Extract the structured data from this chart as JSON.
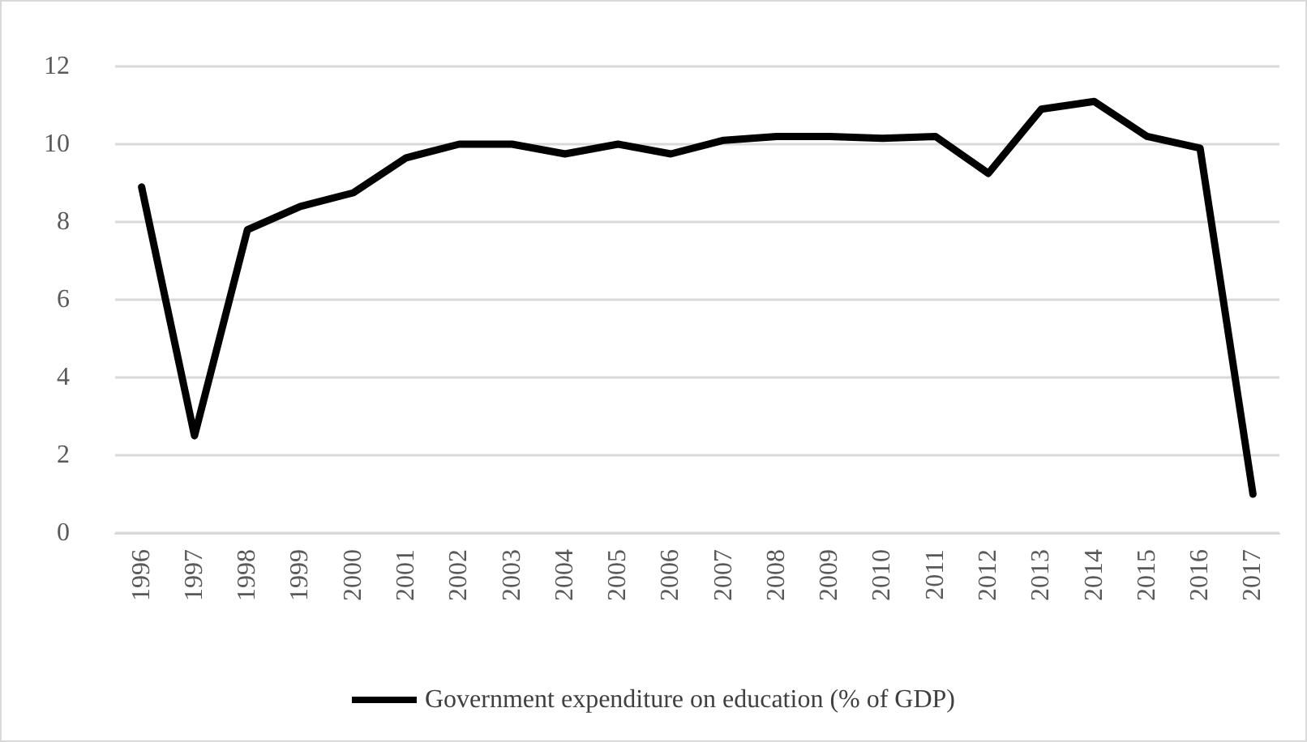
{
  "chart_data": {
    "type": "line",
    "categories": [
      "1996",
      "1997",
      "1998",
      "1999",
      "2000",
      "2001",
      "2002",
      "2003",
      "2004",
      "2005",
      "2006",
      "2007",
      "2008",
      "2009",
      "2010",
      "2011",
      "2012",
      "2013",
      "2014",
      "2015",
      "2016",
      "2017"
    ],
    "series": [
      {
        "name": "Government expenditure on education (% of GDP)",
        "color": "#000000",
        "values": [
          8.9,
          2.5,
          7.8,
          8.4,
          8.75,
          9.65,
          10.0,
          10.0,
          9.75,
          10.0,
          9.75,
          10.1,
          10.2,
          10.2,
          10.15,
          10.2,
          9.25,
          10.9,
          11.1,
          10.2,
          9.9,
          1.0
        ]
      }
    ],
    "ylim": [
      0,
      12
    ],
    "yticks": [
      0,
      2,
      4,
      6,
      8,
      10,
      12
    ],
    "grid": "y",
    "legend": "bottom",
    "marker": "none",
    "line_style": "solid"
  }
}
